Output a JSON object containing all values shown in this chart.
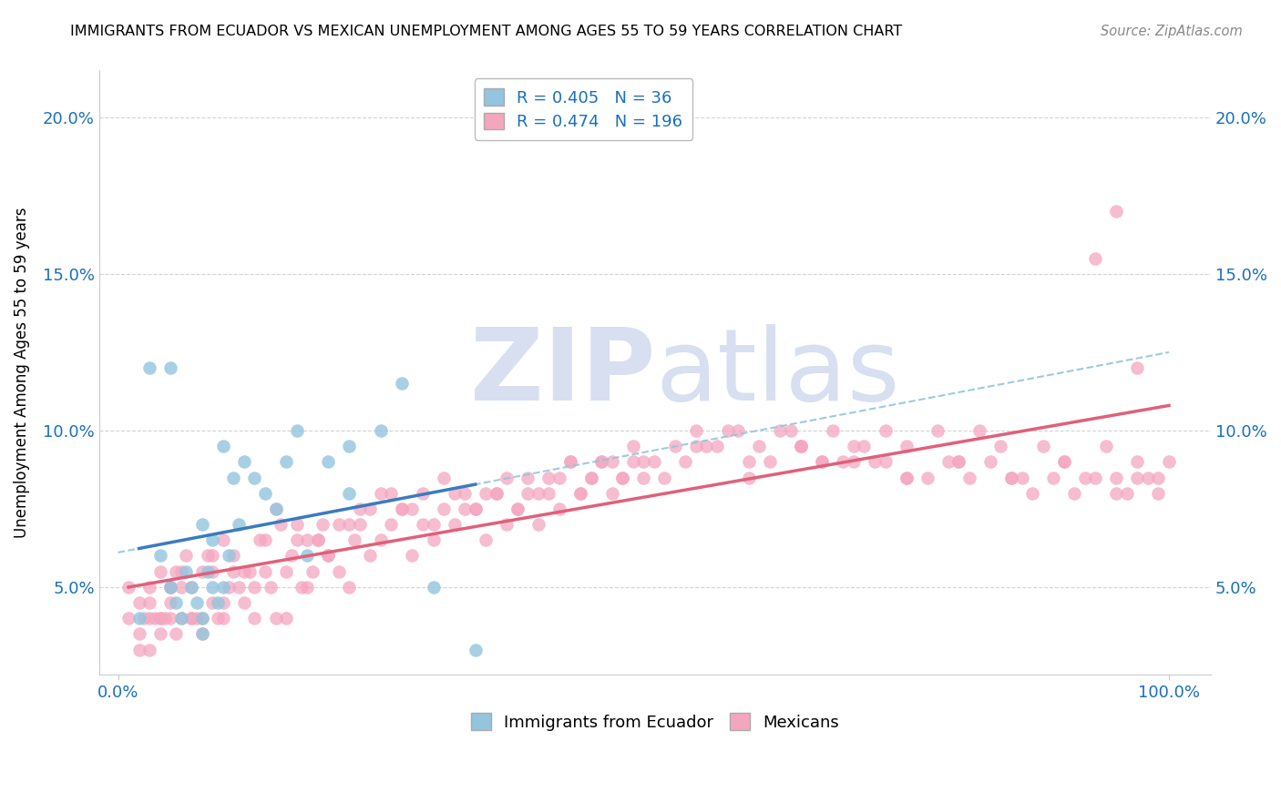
{
  "title": "IMMIGRANTS FROM ECUADOR VS MEXICAN UNEMPLOYMENT AMONG AGES 55 TO 59 YEARS CORRELATION CHART",
  "source": "Source: ZipAtlas.com",
  "ylabel": "Unemployment Among Ages 55 to 59 years",
  "ytick_labels": [
    "5.0%",
    "10.0%",
    "15.0%",
    "20.0%"
  ],
  "ytick_values": [
    0.05,
    0.1,
    0.15,
    0.2
  ],
  "ymin": 0.022,
  "ymax": 0.215,
  "xmin": -0.018,
  "xmax": 1.04,
  "blue_R": 0.405,
  "blue_N": 36,
  "pink_R": 0.474,
  "pink_N": 196,
  "blue_color": "#92c5de",
  "pink_color": "#f4a6bf",
  "blue_edge_color": "#92c5de",
  "pink_edge_color": "#f4a6bf",
  "blue_line_color": "#3a7bbf",
  "pink_line_color": "#e0607a",
  "dashed_line_color": "#92c5de",
  "watermark_zip": "ZIP",
  "watermark_atlas": "atlas",
  "watermark_color": "#d8dff0",
  "legend_color": "#1a6fbd",
  "background_color": "#ffffff",
  "grid_color": "#d0d0d0",
  "blue_x": [
    0.02,
    0.03,
    0.04,
    0.05,
    0.055,
    0.06,
    0.065,
    0.07,
    0.075,
    0.08,
    0.08,
    0.085,
    0.09,
    0.09,
    0.095,
    0.1,
    0.1,
    0.105,
    0.11,
    0.115,
    0.12,
    0.13,
    0.14,
    0.15,
    0.16,
    0.17,
    0.18,
    0.2,
    0.22,
    0.25,
    0.27,
    0.3,
    0.05,
    0.08,
    0.22,
    0.34
  ],
  "blue_y": [
    0.04,
    0.12,
    0.06,
    0.05,
    0.045,
    0.04,
    0.055,
    0.05,
    0.045,
    0.04,
    0.07,
    0.055,
    0.05,
    0.065,
    0.045,
    0.05,
    0.095,
    0.06,
    0.085,
    0.07,
    0.09,
    0.085,
    0.08,
    0.075,
    0.09,
    0.1,
    0.06,
    0.09,
    0.095,
    0.1,
    0.115,
    0.05,
    0.12,
    0.035,
    0.08,
    0.03
  ],
  "pink_x": [
    0.01,
    0.01,
    0.02,
    0.02,
    0.025,
    0.03,
    0.03,
    0.03,
    0.035,
    0.04,
    0.04,
    0.04,
    0.045,
    0.05,
    0.05,
    0.05,
    0.055,
    0.055,
    0.06,
    0.06,
    0.065,
    0.07,
    0.07,
    0.075,
    0.08,
    0.08,
    0.085,
    0.09,
    0.09,
    0.095,
    0.1,
    0.1,
    0.105,
    0.11,
    0.115,
    0.12,
    0.125,
    0.13,
    0.135,
    0.14,
    0.145,
    0.15,
    0.155,
    0.16,
    0.165,
    0.17,
    0.175,
    0.18,
    0.185,
    0.19,
    0.195,
    0.2,
    0.21,
    0.22,
    0.225,
    0.23,
    0.24,
    0.25,
    0.26,
    0.27,
    0.28,
    0.29,
    0.3,
    0.31,
    0.32,
    0.33,
    0.34,
    0.35,
    0.36,
    0.37,
    0.38,
    0.39,
    0.4,
    0.41,
    0.42,
    0.43,
    0.44,
    0.45,
    0.46,
    0.47,
    0.48,
    0.49,
    0.5,
    0.52,
    0.54,
    0.56,
    0.58,
    0.6,
    0.62,
    0.64,
    0.65,
    0.67,
    0.68,
    0.7,
    0.72,
    0.73,
    0.75,
    0.78,
    0.8,
    0.82,
    0.84,
    0.86,
    0.88,
    0.9,
    0.92,
    0.94,
    0.96,
    0.97,
    0.98,
    0.99,
    0.03,
    0.05,
    0.07,
    0.09,
    0.11,
    0.13,
    0.15,
    0.17,
    0.19,
    0.21,
    0.23,
    0.25,
    0.27,
    0.29,
    0.31,
    0.33,
    0.35,
    0.37,
    0.39,
    0.41,
    0.43,
    0.45,
    0.47,
    0.49,
    0.51,
    0.53,
    0.55,
    0.57,
    0.59,
    0.61,
    0.63,
    0.65,
    0.67,
    0.69,
    0.71,
    0.73,
    0.75,
    0.77,
    0.79,
    0.81,
    0.83,
    0.85,
    0.87,
    0.89,
    0.91,
    0.93,
    0.95,
    0.97,
    0.99,
    0.02,
    0.04,
    0.06,
    0.08,
    0.1,
    0.12,
    0.14,
    0.16,
    0.18,
    0.2,
    0.22,
    0.24,
    0.26,
    0.28,
    0.3,
    0.32,
    0.34,
    0.36,
    0.38,
    0.4,
    0.42,
    0.44,
    0.46,
    0.48,
    0.5,
    0.55,
    0.6,
    0.65,
    0.7,
    0.75,
    0.8,
    0.85,
    0.9,
    0.95,
    1.0,
    0.93,
    0.95,
    0.97
  ],
  "pink_y": [
    0.04,
    0.05,
    0.035,
    0.045,
    0.04,
    0.03,
    0.045,
    0.05,
    0.04,
    0.035,
    0.04,
    0.055,
    0.04,
    0.04,
    0.05,
    0.045,
    0.035,
    0.055,
    0.04,
    0.055,
    0.06,
    0.04,
    0.05,
    0.04,
    0.04,
    0.055,
    0.06,
    0.045,
    0.055,
    0.04,
    0.04,
    0.065,
    0.05,
    0.06,
    0.05,
    0.045,
    0.055,
    0.04,
    0.065,
    0.055,
    0.05,
    0.04,
    0.07,
    0.055,
    0.06,
    0.065,
    0.05,
    0.065,
    0.055,
    0.065,
    0.07,
    0.06,
    0.055,
    0.05,
    0.065,
    0.07,
    0.06,
    0.065,
    0.07,
    0.075,
    0.06,
    0.07,
    0.065,
    0.075,
    0.07,
    0.08,
    0.075,
    0.065,
    0.08,
    0.07,
    0.075,
    0.085,
    0.07,
    0.08,
    0.075,
    0.09,
    0.08,
    0.085,
    0.09,
    0.08,
    0.085,
    0.09,
    0.085,
    0.085,
    0.09,
    0.095,
    0.1,
    0.085,
    0.09,
    0.1,
    0.095,
    0.09,
    0.1,
    0.095,
    0.09,
    0.1,
    0.095,
    0.1,
    0.09,
    0.1,
    0.095,
    0.085,
    0.095,
    0.09,
    0.085,
    0.095,
    0.08,
    0.09,
    0.085,
    0.085,
    0.04,
    0.05,
    0.04,
    0.06,
    0.055,
    0.05,
    0.075,
    0.07,
    0.065,
    0.07,
    0.075,
    0.08,
    0.075,
    0.08,
    0.085,
    0.075,
    0.08,
    0.085,
    0.08,
    0.085,
    0.09,
    0.085,
    0.09,
    0.095,
    0.09,
    0.095,
    0.1,
    0.095,
    0.1,
    0.095,
    0.1,
    0.095,
    0.09,
    0.09,
    0.095,
    0.09,
    0.085,
    0.085,
    0.09,
    0.085,
    0.09,
    0.085,
    0.08,
    0.085,
    0.08,
    0.085,
    0.08,
    0.085,
    0.08,
    0.03,
    0.04,
    0.05,
    0.035,
    0.045,
    0.055,
    0.065,
    0.04,
    0.05,
    0.06,
    0.07,
    0.075,
    0.08,
    0.075,
    0.07,
    0.08,
    0.075,
    0.08,
    0.075,
    0.08,
    0.085,
    0.08,
    0.09,
    0.085,
    0.09,
    0.095,
    0.09,
    0.095,
    0.09,
    0.085,
    0.09,
    0.085,
    0.09,
    0.085,
    0.09,
    0.155,
    0.17,
    0.12
  ]
}
